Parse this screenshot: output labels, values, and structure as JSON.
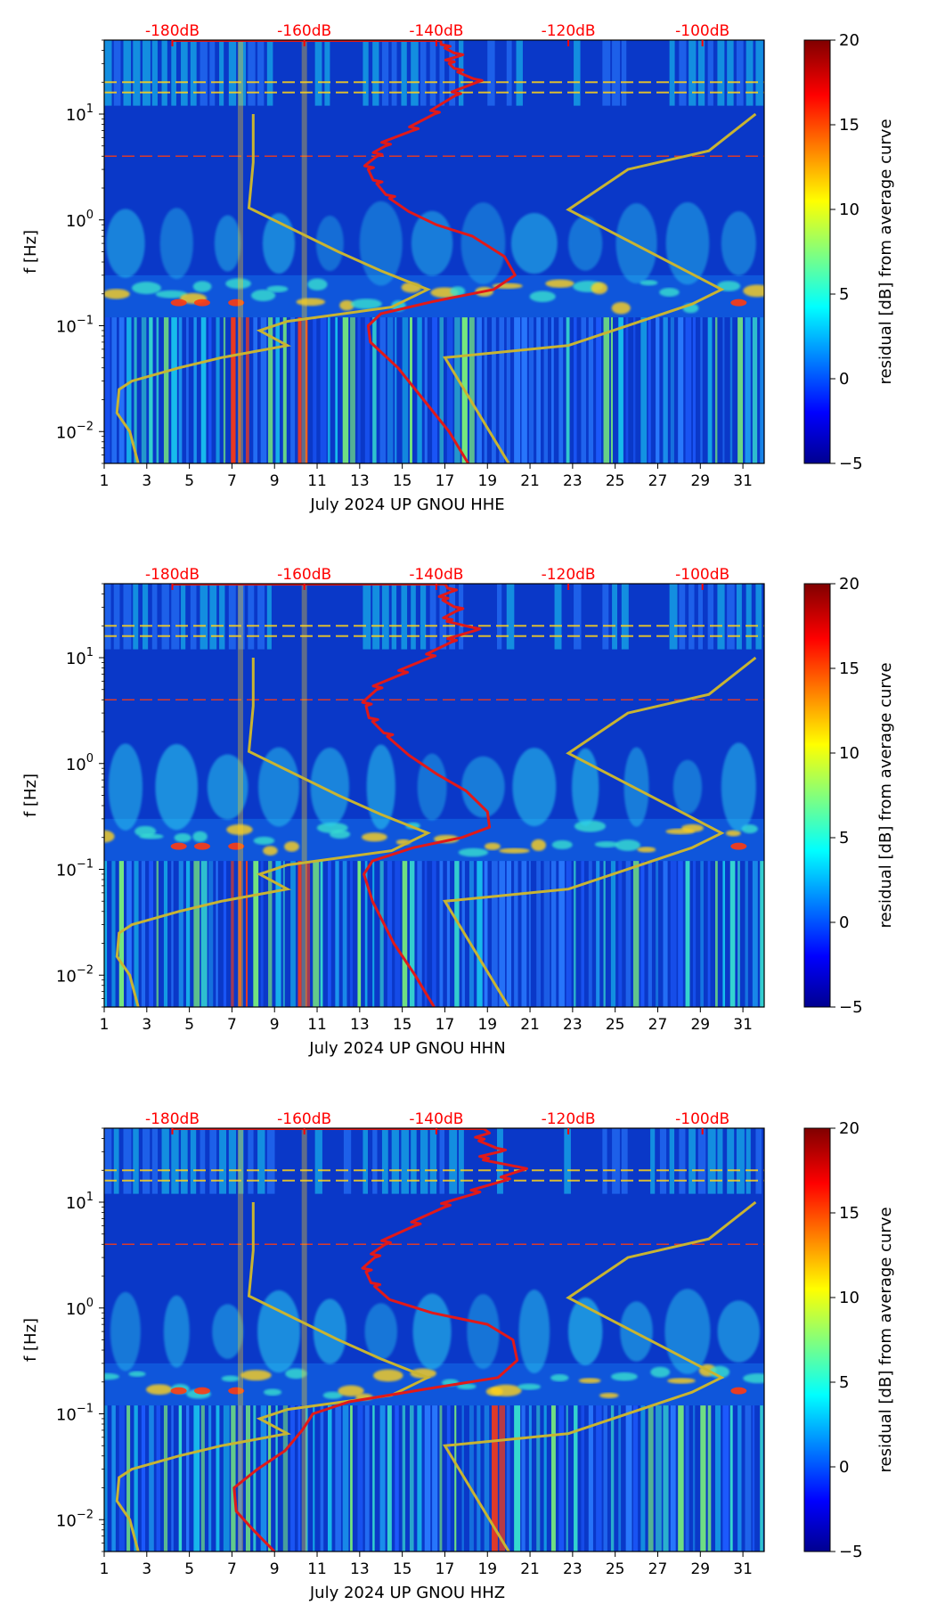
{
  "shared": {
    "x_ticks": [
      "1",
      "3",
      "5",
      "7",
      "9",
      "11",
      "13",
      "15",
      "17",
      "19",
      "21",
      "23",
      "25",
      "27",
      "29",
      "31"
    ],
    "x_tick_days": [
      1,
      3,
      5,
      7,
      9,
      11,
      13,
      15,
      17,
      19,
      21,
      23,
      25,
      27,
      29,
      31
    ],
    "xlim": [
      1,
      32
    ],
    "ylabel": "f [Hz]",
    "y_ticks": [
      {
        "base": "10",
        "exp": "1",
        "value": 10
      },
      {
        "base": "10",
        "exp": "0",
        "value": 1
      },
      {
        "base": "10",
        "exp": "−1",
        "value": 0.1
      },
      {
        "base": "10",
        "exp": "−2",
        "value": 0.01
      }
    ],
    "ylim": [
      0.005,
      50
    ],
    "db_ticks": [
      {
        "label": "-180dB",
        "day": 4.2
      },
      {
        "label": "-160dB",
        "day": 10.4
      },
      {
        "label": "-140dB",
        "day": 16.6
      },
      {
        "label": "-120dB",
        "day": 22.8
      },
      {
        "label": "-100dB",
        "day": 29.1
      }
    ],
    "colorbar_label": "residual [dB] from average curve",
    "colorbar_ticks": [
      "20",
      "15",
      "10",
      "5",
      "0",
      "−5"
    ],
    "colorbar_range": [
      -5,
      20
    ],
    "colors": {
      "colormap": [
        "#00008f",
        "#0000ff",
        "#00ffff",
        "#ffff00",
        "#ff0000",
        "#800000"
      ],
      "background": "#0a38c8",
      "red_curve": "#e11919",
      "noise_model": "#c8b432",
      "db_label": "#ff0000"
    }
  },
  "chart_data": [
    {
      "type": "heatmap",
      "title": "",
      "xlabel": "July 2024 UP GNOU  HHE",
      "ylabel": "f [Hz]",
      "channel": "HHE",
      "red_curve": [
        [
          18.1,
          0.005
        ],
        [
          17.2,
          0.01
        ],
        [
          16.0,
          0.02
        ],
        [
          14.8,
          0.04
        ],
        [
          13.5,
          0.07
        ],
        [
          13.4,
          0.1
        ],
        [
          14.0,
          0.13
        ],
        [
          16.5,
          0.17
        ],
        [
          19.3,
          0.22
        ],
        [
          20.3,
          0.3
        ],
        [
          19.8,
          0.45
        ],
        [
          18.3,
          0.7
        ],
        [
          16.6,
          0.9
        ],
        [
          15.3,
          1.2
        ],
        [
          14.4,
          1.6
        ],
        [
          13.8,
          2.2
        ],
        [
          13.4,
          3
        ],
        [
          13.8,
          4
        ],
        [
          14.2,
          5
        ],
        [
          15.5,
          7
        ],
        [
          16.5,
          10
        ],
        [
          17.5,
          15
        ],
        [
          18.5,
          20
        ],
        [
          17.6,
          25
        ],
        [
          17.2,
          30
        ],
        [
          17.6,
          35
        ],
        [
          17.0,
          42
        ],
        [
          16.8,
          50
        ]
      ]
    },
    {
      "type": "heatmap",
      "title": "",
      "xlabel": "July 2024 UP GNOU  HHN",
      "ylabel": "f [Hz]",
      "channel": "HHN",
      "red_curve": [
        [
          16.5,
          0.005
        ],
        [
          15.6,
          0.01
        ],
        [
          14.6,
          0.02
        ],
        [
          13.6,
          0.05
        ],
        [
          13.2,
          0.09
        ],
        [
          13.6,
          0.12
        ],
        [
          15.5,
          0.16
        ],
        [
          17.8,
          0.2
        ],
        [
          19.1,
          0.25
        ],
        [
          19.0,
          0.35
        ],
        [
          18.0,
          0.55
        ],
        [
          16.6,
          0.8
        ],
        [
          15.3,
          1.2
        ],
        [
          14.3,
          1.8
        ],
        [
          13.6,
          2.5
        ],
        [
          13.3,
          3.5
        ],
        [
          13.8,
          5
        ],
        [
          15.0,
          7
        ],
        [
          16.3,
          10
        ],
        [
          17.3,
          14
        ],
        [
          18.4,
          18
        ],
        [
          17.1,
          22
        ],
        [
          17.6,
          28
        ],
        [
          16.9,
          35
        ],
        [
          17.3,
          42
        ],
        [
          17.0,
          50
        ]
      ]
    },
    {
      "type": "heatmap",
      "title": "",
      "xlabel": "July 2024 UP GNOU  HHZ",
      "ylabel": "f [Hz]",
      "channel": "HHZ",
      "red_curve": [
        [
          9.0,
          0.005
        ],
        [
          8.0,
          0.008
        ],
        [
          7.2,
          0.012
        ],
        [
          7.1,
          0.02
        ],
        [
          8.2,
          0.03
        ],
        [
          9.5,
          0.045
        ],
        [
          10.3,
          0.07
        ],
        [
          10.8,
          0.1
        ],
        [
          12.5,
          0.13
        ],
        [
          16.0,
          0.17
        ],
        [
          19.5,
          0.22
        ],
        [
          20.4,
          0.32
        ],
        [
          20.2,
          0.5
        ],
        [
          19.0,
          0.7
        ],
        [
          16.4,
          0.9
        ],
        [
          14.4,
          1.2
        ],
        [
          13.7,
          1.6
        ],
        [
          13.3,
          2.2
        ],
        [
          13.7,
          3
        ],
        [
          14.2,
          4
        ],
        [
          15.6,
          6
        ],
        [
          17.0,
          9
        ],
        [
          18.4,
          12
        ],
        [
          19.8,
          16
        ],
        [
          20.6,
          20
        ],
        [
          18.8,
          25
        ],
        [
          19.6,
          30
        ],
        [
          18.6,
          38
        ],
        [
          19.1,
          45
        ],
        [
          18.8,
          50
        ]
      ]
    }
  ],
  "noise_model_curve": [
    [
      2.6,
      0.005
    ],
    [
      2.2,
      0.01
    ],
    [
      1.6,
      0.015
    ],
    [
      1.7,
      0.025
    ],
    [
      2.3,
      0.03
    ],
    [
      4.5,
      0.04
    ],
    [
      6.5,
      0.05
    ],
    [
      9.6,
      0.065
    ],
    [
      8.3,
      0.09
    ],
    [
      9.6,
      0.11
    ],
    [
      14.5,
      0.15
    ],
    [
      16.2,
      0.22
    ],
    [
      14.0,
      0.33
    ],
    [
      12.0,
      0.5
    ],
    [
      7.8,
      1.3
    ],
    [
      8.0,
      3.5
    ],
    [
      8.0,
      10
    ]
  ],
  "noise_model_curve_high": [
    [
      20.0,
      0.005
    ],
    [
      17.0,
      0.05
    ],
    [
      22.8,
      0.065
    ],
    [
      28.6,
      0.16
    ],
    [
      30.0,
      0.22
    ],
    [
      22.8,
      1.25
    ],
    [
      25.6,
      3.0
    ],
    [
      29.4,
      4.5
    ],
    [
      31.6,
      10
    ]
  ]
}
